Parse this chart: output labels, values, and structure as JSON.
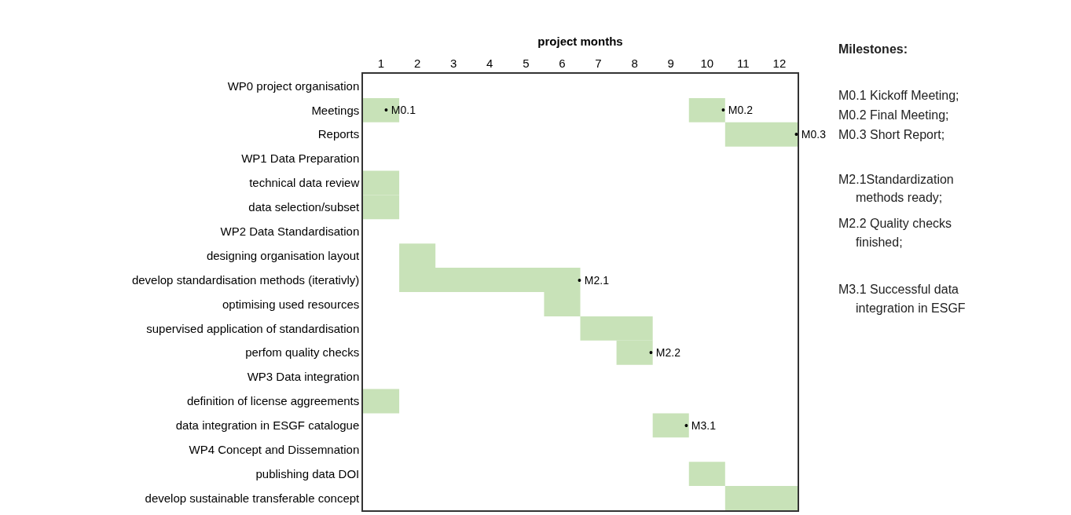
{
  "chart_data": {
    "type": "bar",
    "orientation": "horizontal",
    "xlabel": "project months",
    "categories": [
      "WP0 project organisation",
      "Meetings",
      "Reports",
      "WP1 Data Preparation",
      "technical data review",
      "data selection/subset",
      "WP2 Data Standardisation",
      "designing organisation layout",
      "develop standardisation methods (iterativly)",
      "optimising used resources",
      "supervised application of standardisation",
      "perfom quality checks",
      "WP3 Data integration",
      "definition of license aggreements",
      "data integration in ESGF catalogue",
      "WP4 Concept and Dissemnation",
      "publishing data DOI",
      "develop sustainable transferable concept"
    ],
    "series": [
      {
        "color": "#c8e2b8",
        "base": [
          null,
          0.5,
          10.5,
          null,
          0.5,
          0.5,
          null,
          1.5,
          1.5,
          5.5,
          6.5,
          7.5,
          null,
          0.5,
          8.5,
          null,
          9.5,
          10.5
        ],
        "values": [
          null,
          1,
          2,
          null,
          1,
          1,
          null,
          1,
          5,
          1,
          2,
          1,
          null,
          1,
          1,
          null,
          1,
          2
        ]
      },
      {
        "color": "#c8e2b8",
        "base": [
          null,
          9.5,
          null,
          null,
          null,
          null,
          null,
          null,
          null,
          null,
          null,
          null,
          null,
          null,
          null,
          null,
          null,
          null
        ],
        "values": [
          null,
          1,
          null,
          null,
          null,
          null,
          null,
          null,
          null,
          null,
          null,
          null,
          null,
          null,
          null,
          null,
          null,
          null
        ]
      }
    ],
    "xlim": [
      0.5,
      12.5
    ],
    "xticks": [
      1,
      2,
      3,
      4,
      5,
      6,
      7,
      8,
      9,
      10,
      11,
      12
    ],
    "grid": false,
    "annotations": [
      {
        "text": "• M0.1",
        "x": 1.04,
        "y": "Meetings"
      },
      {
        "text": "• M0.2",
        "x": 10.35,
        "y": "Meetings"
      },
      {
        "text": "• M0.3",
        "x": 12.37,
        "y": "Reports"
      },
      {
        "text": "• M2.1",
        "x": 6.38,
        "y": "develop standardisation methods (iterativly)"
      },
      {
        "text": "• M2.2",
        "x": 8.35,
        "y": "perfom quality checks"
      },
      {
        "text": "• M3.1",
        "x": 9.33,
        "y": "data integration in ESGF catalogue"
      },
      "Milestones:",
      "M0.1 Kickoff Meeting;",
      "M0.2 Final Meeting;",
      "M0.3 Short Report;",
      "M2.1Standardization",
      "methods ready;",
      "M2.2 Quality checks",
      "finished;",
      "M3.1 Successful data",
      "integration in ESGF"
    ]
  }
}
